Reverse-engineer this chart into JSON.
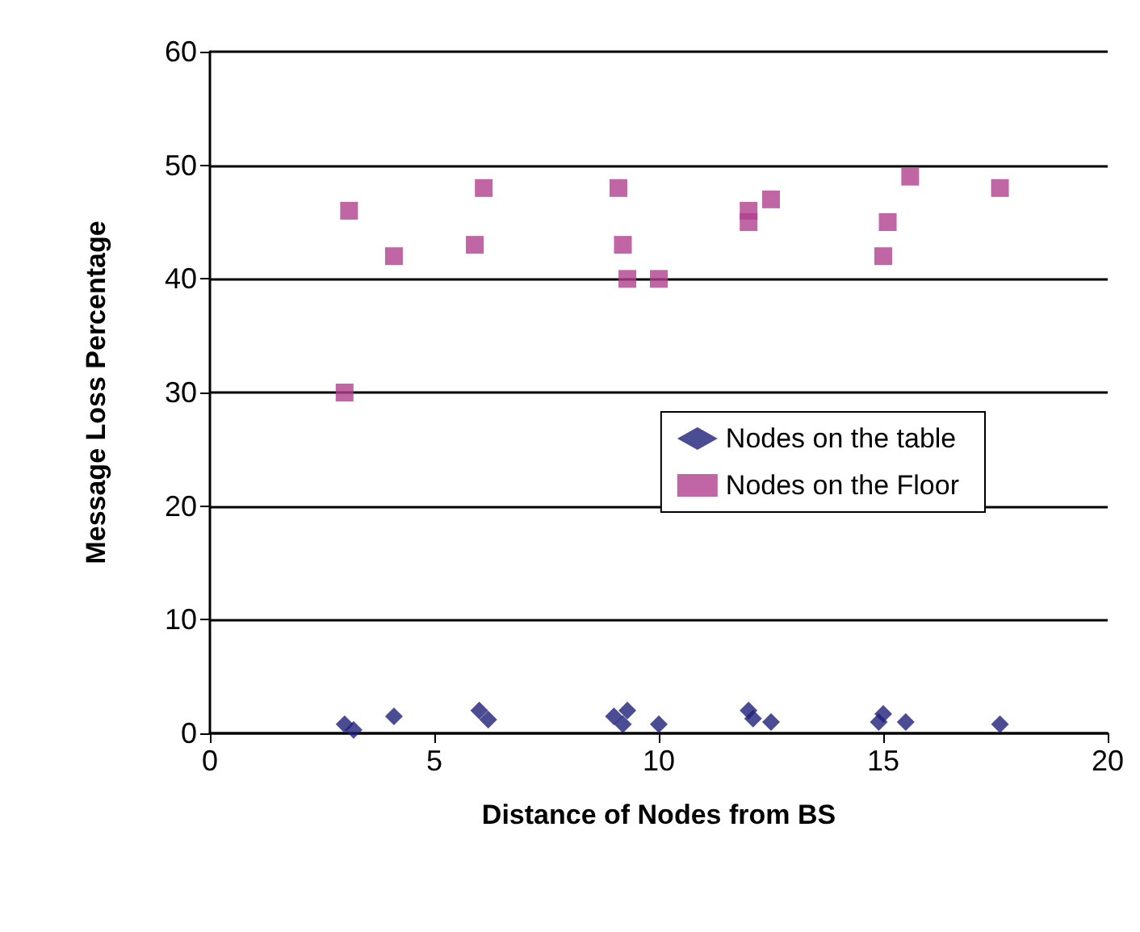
{
  "chart_data": {
    "type": "scatter",
    "xlabel": "Distance of Nodes from BS",
    "ylabel": "Message Loss Percentage",
    "xlim": [
      0,
      20
    ],
    "xticks": [
      0,
      5,
      10,
      15,
      20
    ],
    "ylim": [
      0,
      60
    ],
    "yticks": [
      0,
      10,
      20,
      30,
      40,
      50,
      60
    ],
    "grid": "y",
    "legend": "right",
    "series": [
      {
        "name": "Nodes on the table",
        "color": "#1f1f7a",
        "marker": "diamond",
        "x": [
          3,
          3.2,
          4.1,
          6,
          6.2,
          9,
          9.2,
          9.3,
          10,
          12,
          12.1,
          12.5,
          14.9,
          15,
          15.5,
          17.6
        ],
        "values": [
          0.8,
          0.3,
          1.5,
          2,
          1.2,
          1.5,
          0.8,
          2,
          0.8,
          2,
          1.3,
          1,
          1,
          1.7,
          1,
          0.8
        ]
      },
      {
        "name": "Nodes on the Floor",
        "color": "#b0408f",
        "marker": "square",
        "x": [
          3,
          3.1,
          4.1,
          5.9,
          6.1,
          9.1,
          9.2,
          9.3,
          10,
          12,
          12,
          12.5,
          15,
          15.1,
          15.6,
          17.6
        ],
        "values": [
          30,
          46,
          42,
          43,
          48,
          48,
          43,
          40,
          40,
          46,
          45,
          47,
          42,
          45,
          49,
          48
        ]
      }
    ]
  }
}
